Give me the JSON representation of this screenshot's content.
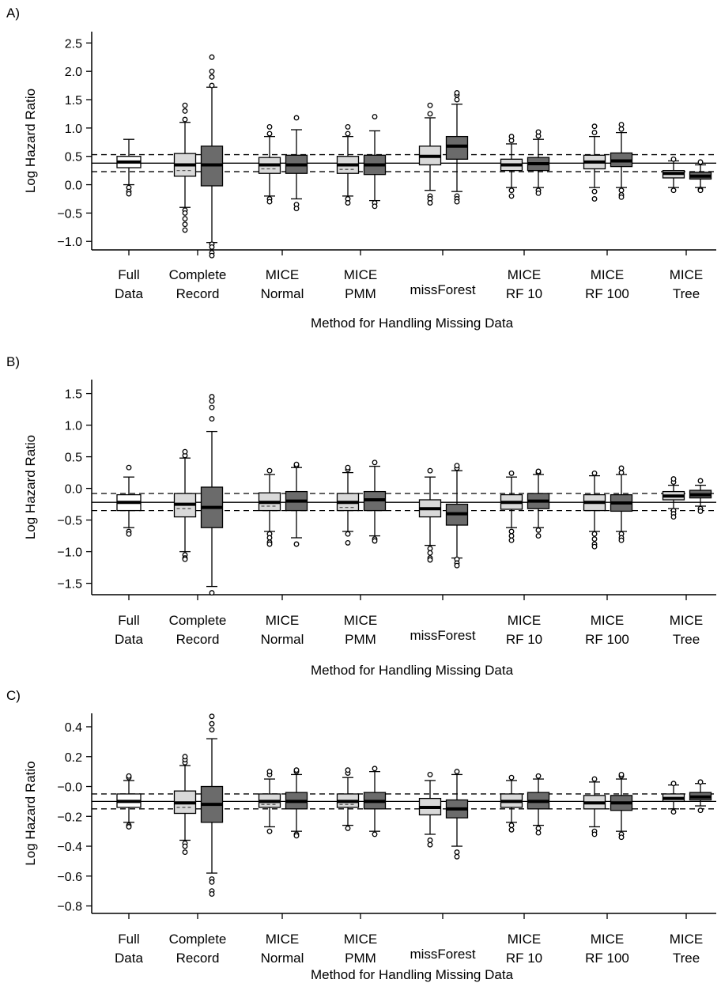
{
  "figure": {
    "fill_colors": {
      "light": "#d9d9d9",
      "dark": "#6b6b6b",
      "white": "#ffffff"
    }
  },
  "chart_data": [
    {
      "panel": "A)",
      "type": "box",
      "ylabel": "Log Hazard Ratio",
      "xlabel": "Method for Handling Missing Data",
      "ylim": [
        -1.15,
        2.7
      ],
      "yticks": [
        -1.0,
        -0.5,
        0.0,
        0.5,
        1.0,
        1.5,
        2.0,
        2.5
      ],
      "ytick_labels": [
        "−1.0",
        "−0.5",
        "0.0",
        "0.5",
        "1.0",
        "1.5",
        "2.0",
        "2.5"
      ],
      "categories": [
        [
          "Full",
          "Data"
        ],
        [
          "Complete",
          "Record"
        ],
        [
          "MICE",
          "Normal"
        ],
        [
          "MICE",
          "PMM"
        ],
        [
          "",
          "missForest"
        ],
        [
          "MICE",
          "RF 10"
        ],
        [
          "MICE",
          "RF 100"
        ],
        [
          "MICE",
          "Tree"
        ]
      ],
      "reference_lines": {
        "solid": 0.38,
        "dashed": [
          0.53,
          0.23
        ]
      },
      "boxes": [
        {
          "cat": 0,
          "slot": "center",
          "fill": "white",
          "q1": 0.3,
          "median": 0.4,
          "q3": 0.5,
          "whisker_low": 0.0,
          "whisker_high": 0.8,
          "outliers": [
            -0.05,
            -0.12,
            -0.16
          ]
        },
        {
          "cat": 1,
          "slot": "left",
          "fill": "light",
          "q1": 0.15,
          "median": 0.35,
          "q3": 0.55,
          "mean": 0.25,
          "whisker_low": -0.4,
          "whisker_high": 1.1,
          "outliers": [
            -0.45,
            -0.5,
            -0.6,
            -0.7,
            -0.8,
            1.15,
            1.3,
            1.4
          ]
        },
        {
          "cat": 1,
          "slot": "right",
          "fill": "dark",
          "q1": -0.02,
          "median": 0.35,
          "q3": 0.68,
          "whisker_low": -1.02,
          "whisker_high": 1.72,
          "outliers": [
            -1.05,
            -1.1,
            -1.2,
            -1.25,
            1.75,
            1.9,
            2.0,
            2.25
          ]
        },
        {
          "cat": 2,
          "slot": "left",
          "fill": "light",
          "q1": 0.2,
          "median": 0.35,
          "q3": 0.48,
          "mean": 0.28,
          "whisker_low": -0.2,
          "whisker_high": 0.85,
          "outliers": [
            -0.25,
            -0.3,
            0.9,
            1.02
          ]
        },
        {
          "cat": 2,
          "slot": "right",
          "fill": "dark",
          "q1": 0.2,
          "median": 0.35,
          "q3": 0.52,
          "whisker_low": -0.25,
          "whisker_high": 0.97,
          "outliers": [
            -0.35,
            -0.42,
            1.18
          ]
        },
        {
          "cat": 3,
          "slot": "left",
          "fill": "light",
          "q1": 0.2,
          "median": 0.35,
          "q3": 0.5,
          "mean": 0.27,
          "whisker_low": -0.2,
          "whisker_high": 0.85,
          "outliers": [
            -0.25,
            -0.32,
            0.9,
            1.02
          ]
        },
        {
          "cat": 3,
          "slot": "right",
          "fill": "dark",
          "q1": 0.18,
          "median": 0.35,
          "q3": 0.52,
          "whisker_low": -0.28,
          "whisker_high": 0.95,
          "outliers": [
            -0.32,
            -0.38,
            1.2
          ]
        },
        {
          "cat": 4,
          "slot": "left",
          "fill": "light",
          "q1": 0.35,
          "median": 0.5,
          "q3": 0.68,
          "whisker_low": -0.1,
          "whisker_high": 1.18,
          "outliers": [
            -0.2,
            -0.25,
            -0.32,
            1.25,
            1.4
          ]
        },
        {
          "cat": 4,
          "slot": "right",
          "fill": "dark",
          "q1": 0.45,
          "median": 0.68,
          "q3": 0.85,
          "whisker_low": -0.12,
          "whisker_high": 1.42,
          "outliers": [
            -0.2,
            -0.25,
            -0.3,
            1.5,
            1.58,
            1.62
          ]
        },
        {
          "cat": 5,
          "slot": "left",
          "fill": "light",
          "q1": 0.25,
          "median": 0.35,
          "q3": 0.45,
          "whisker_low": -0.05,
          "whisker_high": 0.72,
          "outliers": [
            -0.1,
            -0.2,
            0.78,
            0.85
          ]
        },
        {
          "cat": 5,
          "slot": "right",
          "fill": "dark",
          "q1": 0.25,
          "median": 0.37,
          "q3": 0.48,
          "whisker_low": -0.05,
          "whisker_high": 0.8,
          "outliers": [
            -0.1,
            -0.15,
            0.86,
            0.93
          ]
        },
        {
          "cat": 6,
          "slot": "left",
          "fill": "light",
          "q1": 0.28,
          "median": 0.4,
          "q3": 0.52,
          "whisker_low": -0.05,
          "whisker_high": 0.85,
          "outliers": [
            -0.12,
            -0.25,
            0.92,
            1.03
          ]
        },
        {
          "cat": 6,
          "slot": "right",
          "fill": "dark",
          "q1": 0.32,
          "median": 0.42,
          "q3": 0.56,
          "whisker_low": -0.05,
          "whisker_high": 0.92,
          "outliers": [
            -0.1,
            -0.18,
            -0.22,
            0.98,
            1.06
          ]
        },
        {
          "cat": 7,
          "slot": "left",
          "fill": "light",
          "q1": 0.12,
          "median": 0.2,
          "q3": 0.25,
          "whisker_low": -0.05,
          "whisker_high": 0.42,
          "outliers": [
            -0.1,
            0.45
          ]
        },
        {
          "cat": 7,
          "slot": "right",
          "fill": "dark",
          "q1": 0.1,
          "median": 0.15,
          "q3": 0.22,
          "whisker_low": -0.05,
          "whisker_high": 0.35,
          "outliers": [
            -0.08,
            -0.1,
            0.4
          ]
        }
      ]
    },
    {
      "panel": "B)",
      "type": "box",
      "ylabel": "Log Hazard Ratio",
      "xlabel": "Method for Handling Missing Data",
      "ylim": [
        -1.68,
        1.72
      ],
      "yticks": [
        -1.5,
        -1.0,
        -0.5,
        0.0,
        0.5,
        1.0,
        1.5
      ],
      "ytick_labels": [
        "−1.5",
        "−1.0",
        "−0.5",
        "0.0",
        "0.5",
        "1.0",
        "1.5"
      ],
      "categories": [
        [
          "Full",
          "Data"
        ],
        [
          "Complete",
          "Record"
        ],
        [
          "MICE",
          "Normal"
        ],
        [
          "MICE",
          "PMM"
        ],
        [
          "",
          "missForest"
        ],
        [
          "MICE",
          "RF 10"
        ],
        [
          "MICE",
          "RF 100"
        ],
        [
          "MICE",
          "Tree"
        ]
      ],
      "reference_lines": {
        "solid": -0.22,
        "dashed": [
          -0.08,
          -0.35
        ]
      },
      "boxes": [
        {
          "cat": 0,
          "slot": "center",
          "fill": "white",
          "q1": -0.35,
          "median": -0.22,
          "q3": -0.1,
          "whisker_low": -0.62,
          "whisker_high": 0.18,
          "outliers": [
            -0.68,
            -0.72,
            0.33
          ]
        },
        {
          "cat": 1,
          "slot": "left",
          "fill": "light",
          "q1": -0.45,
          "median": -0.25,
          "q3": -0.08,
          "mean": -0.32,
          "whisker_low": -1.0,
          "whisker_high": 0.48,
          "outliers": [
            -1.05,
            -1.1,
            -1.12,
            0.52,
            0.58
          ]
        },
        {
          "cat": 1,
          "slot": "right",
          "fill": "dark",
          "q1": -0.62,
          "median": -0.3,
          "q3": 0.02,
          "whisker_low": -1.55,
          "whisker_high": 0.9,
          "outliers": [
            -1.65,
            1.1,
            1.28,
            1.38,
            1.45
          ]
        },
        {
          "cat": 2,
          "slot": "left",
          "fill": "light",
          "q1": -0.35,
          "median": -0.22,
          "q3": -0.07,
          "mean": -0.28,
          "whisker_low": -0.68,
          "whisker_high": 0.22,
          "outliers": [
            -0.72,
            -0.78,
            -0.85,
            -0.88,
            0.28
          ]
        },
        {
          "cat": 2,
          "slot": "right",
          "fill": "dark",
          "q1": -0.35,
          "median": -0.2,
          "q3": -0.05,
          "whisker_low": -0.78,
          "whisker_high": 0.33,
          "outliers": [
            -0.88,
            0.36,
            0.38
          ]
        },
        {
          "cat": 3,
          "slot": "left",
          "fill": "light",
          "q1": -0.35,
          "median": -0.22,
          "q3": -0.08,
          "mean": -0.3,
          "whisker_low": -0.68,
          "whisker_high": 0.25,
          "outliers": [
            -0.72,
            -0.86,
            0.3,
            0.33
          ]
        },
        {
          "cat": 3,
          "slot": "right",
          "fill": "dark",
          "q1": -0.35,
          "median": -0.18,
          "q3": -0.05,
          "whisker_low": -0.75,
          "whisker_high": 0.35,
          "outliers": [
            -0.8,
            -0.83,
            0.41
          ]
        },
        {
          "cat": 4,
          "slot": "left",
          "fill": "light",
          "q1": -0.45,
          "median": -0.32,
          "q3": -0.18,
          "whisker_low": -0.9,
          "whisker_high": 0.18,
          "outliers": [
            -0.95,
            -1.02,
            -1.1,
            -1.13,
            0.28
          ]
        },
        {
          "cat": 4,
          "slot": "right",
          "fill": "dark",
          "q1": -0.58,
          "median": -0.4,
          "q3": -0.25,
          "whisker_low": -1.1,
          "whisker_high": 0.28,
          "outliers": [
            -1.12,
            -1.18,
            -1.22,
            0.32,
            0.36
          ]
        },
        {
          "cat": 5,
          "slot": "left",
          "fill": "light",
          "q1": -0.33,
          "median": -0.22,
          "q3": -0.1,
          "whisker_low": -0.62,
          "whisker_high": 0.18,
          "outliers": [
            -0.68,
            -0.75,
            -0.82,
            0.24
          ]
        },
        {
          "cat": 5,
          "slot": "right",
          "fill": "dark",
          "q1": -0.32,
          "median": -0.2,
          "q3": -0.08,
          "whisker_low": -0.62,
          "whisker_high": 0.22,
          "outliers": [
            -0.66,
            -0.75,
            0.25,
            0.27
          ]
        },
        {
          "cat": 6,
          "slot": "left",
          "fill": "light",
          "q1": -0.35,
          "median": -0.22,
          "q3": -0.1,
          "whisker_low": -0.68,
          "whisker_high": 0.2,
          "outliers": [
            -0.72,
            -0.8,
            -0.88,
            -0.92,
            0.24
          ]
        },
        {
          "cat": 6,
          "slot": "right",
          "fill": "dark",
          "q1": -0.36,
          "median": -0.23,
          "q3": -0.1,
          "whisker_low": -0.68,
          "whisker_high": 0.22,
          "outliers": [
            -0.72,
            -0.78,
            -0.82,
            0.25,
            0.32
          ]
        },
        {
          "cat": 7,
          "slot": "left",
          "fill": "light",
          "q1": -0.18,
          "median": -0.12,
          "q3": -0.05,
          "whisker_low": -0.32,
          "whisker_high": 0.05,
          "outliers": [
            -0.35,
            -0.4,
            -0.45,
            0.1,
            0.15
          ]
        },
        {
          "cat": 7,
          "slot": "right",
          "fill": "dark",
          "q1": -0.15,
          "median": -0.1,
          "q3": -0.03,
          "whisker_low": -0.28,
          "whisker_high": 0.05,
          "outliers": [
            -0.32,
            -0.36,
            0.12
          ]
        }
      ]
    },
    {
      "panel": "C)",
      "type": "box",
      "ylabel": "Log Hazard Ratio",
      "xlabel": "Method for Handling Missing Data",
      "ylim": [
        -0.85,
        0.49
      ],
      "yticks": [
        -0.8,
        -0.6,
        -0.4,
        -0.2,
        0.0,
        0.2,
        0.4
      ],
      "ytick_labels": [
        "−0.8",
        "−0.6",
        "−0.4",
        "−0.2",
        "−0.0",
        "0.2",
        "0.4"
      ],
      "categories": [
        [
          "Full",
          "Data"
        ],
        [
          "Complete",
          "Record"
        ],
        [
          "MICE",
          "Normal"
        ],
        [
          "MICE",
          "PMM"
        ],
        [
          "",
          "missForest"
        ],
        [
          "MICE",
          "RF 10"
        ],
        [
          "MICE",
          "RF 100"
        ],
        [
          "MICE",
          "Tree"
        ]
      ],
      "reference_lines": {
        "solid": -0.1,
        "dashed": [
          -0.05,
          -0.15
        ]
      },
      "boxes": [
        {
          "cat": 0,
          "slot": "center",
          "fill": "white",
          "q1": -0.14,
          "median": -0.1,
          "q3": -0.05,
          "whisker_low": -0.24,
          "whisker_high": 0.04,
          "outliers": [
            -0.26,
            -0.27,
            0.06,
            0.07
          ]
        },
        {
          "cat": 1,
          "slot": "left",
          "fill": "light",
          "q1": -0.18,
          "median": -0.11,
          "q3": -0.03,
          "mean": -0.14,
          "whisker_low": -0.36,
          "whisker_high": 0.14,
          "outliers": [
            -0.38,
            -0.4,
            -0.44,
            0.16,
            0.18,
            0.2
          ]
        },
        {
          "cat": 1,
          "slot": "right",
          "fill": "dark",
          "q1": -0.24,
          "median": -0.12,
          "q3": 0.0,
          "whisker_low": -0.58,
          "whisker_high": 0.32,
          "outliers": [
            -0.62,
            -0.64,
            -0.7,
            -0.72,
            0.38,
            0.42,
            0.47
          ]
        },
        {
          "cat": 2,
          "slot": "left",
          "fill": "light",
          "q1": -0.14,
          "median": -0.1,
          "q3": -0.05,
          "mean": -0.12,
          "whisker_low": -0.27,
          "whisker_high": 0.05,
          "outliers": [
            -0.3,
            0.08,
            0.1
          ]
        },
        {
          "cat": 2,
          "slot": "right",
          "fill": "dark",
          "q1": -0.15,
          "median": -0.1,
          "q3": -0.04,
          "whisker_low": -0.3,
          "whisker_high": 0.08,
          "outliers": [
            -0.32,
            -0.33,
            0.1,
            0.11
          ]
        },
        {
          "cat": 3,
          "slot": "left",
          "fill": "light",
          "q1": -0.14,
          "median": -0.1,
          "q3": -0.05,
          "mean": -0.12,
          "whisker_low": -0.26,
          "whisker_high": 0.06,
          "outliers": [
            -0.28,
            0.09,
            0.11
          ]
        },
        {
          "cat": 3,
          "slot": "right",
          "fill": "dark",
          "q1": -0.15,
          "median": -0.1,
          "q3": -0.04,
          "whisker_low": -0.3,
          "whisker_high": 0.1,
          "outliers": [
            -0.32,
            0.12
          ]
        },
        {
          "cat": 4,
          "slot": "left",
          "fill": "light",
          "q1": -0.19,
          "median": -0.14,
          "q3": -0.08,
          "whisker_low": -0.32,
          "whisker_high": 0.04,
          "outliers": [
            -0.36,
            -0.39,
            0.08
          ]
        },
        {
          "cat": 4,
          "slot": "right",
          "fill": "dark",
          "q1": -0.21,
          "median": -0.15,
          "q3": -0.09,
          "whisker_low": -0.4,
          "whisker_high": 0.08,
          "outliers": [
            -0.44,
            -0.47,
            0.1
          ]
        },
        {
          "cat": 5,
          "slot": "left",
          "fill": "light",
          "q1": -0.14,
          "median": -0.1,
          "q3": -0.05,
          "whisker_low": -0.24,
          "whisker_high": 0.04,
          "outliers": [
            -0.26,
            -0.29,
            0.06
          ]
        },
        {
          "cat": 5,
          "slot": "right",
          "fill": "dark",
          "q1": -0.15,
          "median": -0.1,
          "q3": -0.04,
          "whisker_low": -0.26,
          "whisker_high": 0.05,
          "outliers": [
            -0.28,
            -0.31,
            0.07
          ]
        },
        {
          "cat": 6,
          "slot": "left",
          "fill": "light",
          "q1": -0.15,
          "median": -0.11,
          "q3": -0.06,
          "whisker_low": -0.27,
          "whisker_high": 0.03,
          "outliers": [
            -0.3,
            -0.32,
            0.05
          ]
        },
        {
          "cat": 6,
          "slot": "right",
          "fill": "dark",
          "q1": -0.16,
          "median": -0.11,
          "q3": -0.06,
          "whisker_low": -0.3,
          "whisker_high": 0.05,
          "outliers": [
            -0.32,
            -0.34,
            0.07,
            0.08
          ]
        },
        {
          "cat": 7,
          "slot": "left",
          "fill": "light",
          "q1": -0.1,
          "median": -0.08,
          "q3": -0.05,
          "whisker_low": -0.15,
          "whisker_high": 0.01,
          "outliers": [
            -0.17,
            0.02
          ]
        },
        {
          "cat": 7,
          "slot": "right",
          "fill": "dark",
          "q1": -0.09,
          "median": -0.07,
          "q3": -0.04,
          "whisker_low": -0.13,
          "whisker_high": 0.02,
          "outliers": [
            -0.16,
            0.03
          ]
        }
      ]
    }
  ]
}
